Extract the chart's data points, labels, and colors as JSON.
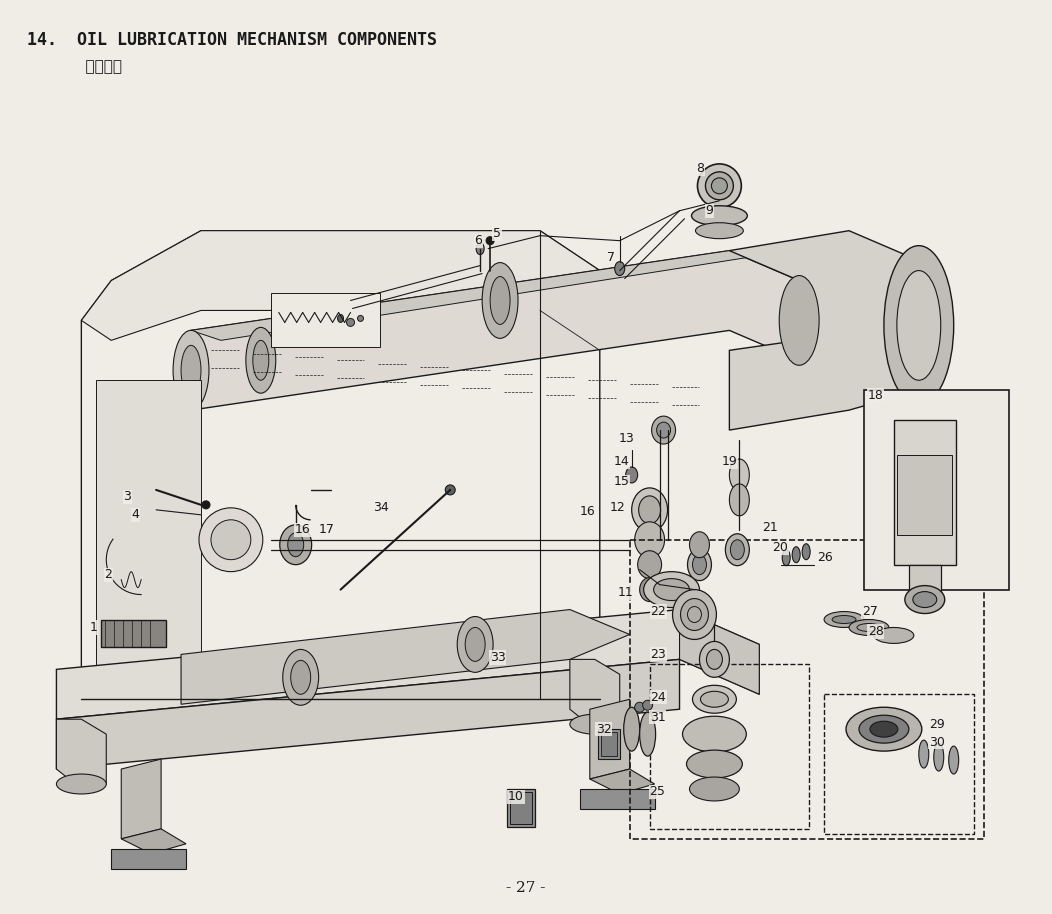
{
  "title_line1": "14.  OIL LUBRICATION MECHANISM COMPONENTS",
  "title_line2": "    給油関係",
  "page_number": "- 27 -",
  "bg_color": "#f0ede6",
  "line_color": "#1a1a1a",
  "text_color": "#1a1a1a",
  "title_fontsize": 12,
  "label_fontsize": 9,
  "page_fontsize": 11,
  "fig_width": 10.52,
  "fig_height": 9.14,
  "dpi": 100
}
